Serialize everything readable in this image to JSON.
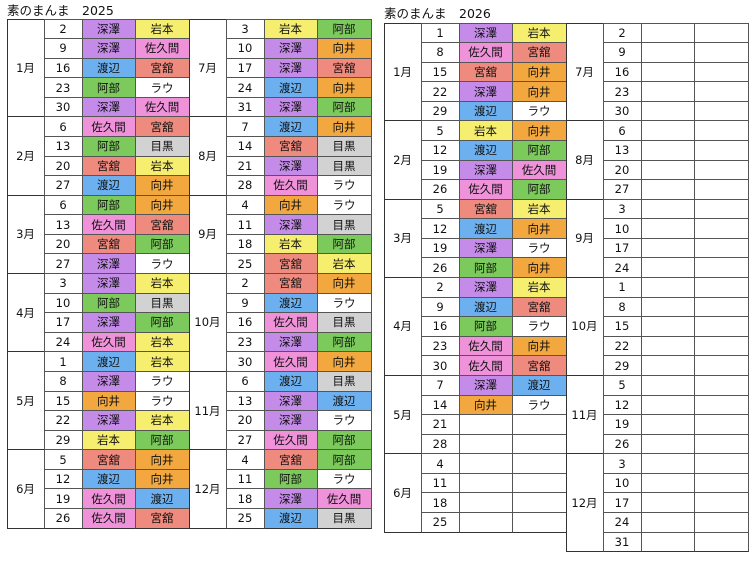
{
  "member_colors": {
    "深澤": "#c48be8",
    "岩本": "#f6ee6e",
    "佐久間": "#ef92d9",
    "渡辺": "#6cb0ef",
    "宮舘": "#ee8a7e",
    "阿部": "#7cc95c",
    "ラウ": "#ffffff",
    "向井": "#f2a83f",
    "目黒": "#d2d2d2"
  },
  "tables": [
    {
      "title": "素のまんま　2025",
      "columns": [
        {
          "months": [
            {
              "month": "1月",
              "rows": [
                [
                  2,
                  "深澤",
                  "岩本"
                ],
                [
                  9,
                  "深澤",
                  "佐久間"
                ],
                [
                  16,
                  "渡辺",
                  "宮舘"
                ],
                [
                  23,
                  "阿部",
                  "ラウ"
                ],
                [
                  30,
                  "深澤",
                  "佐久間"
                ]
              ]
            },
            {
              "month": "2月",
              "rows": [
                [
                  6,
                  "佐久間",
                  "宮舘"
                ],
                [
                  13,
                  "阿部",
                  "目黒"
                ],
                [
                  20,
                  "宮舘",
                  "岩本"
                ],
                [
                  27,
                  "渡辺",
                  "向井"
                ]
              ]
            },
            {
              "month": "3月",
              "rows": [
                [
                  6,
                  "阿部",
                  "向井"
                ],
                [
                  13,
                  "佐久間",
                  "宮舘"
                ],
                [
                  20,
                  "宮舘",
                  "阿部"
                ],
                [
                  27,
                  "深澤",
                  "ラウ"
                ]
              ]
            },
            {
              "month": "4月",
              "rows": [
                [
                  3,
                  "深澤",
                  "岩本"
                ],
                [
                  10,
                  "阿部",
                  "目黒"
                ],
                [
                  17,
                  "深澤",
                  "阿部"
                ],
                [
                  24,
                  "佐久間",
                  "岩本"
                ]
              ]
            },
            {
              "month": "5月",
              "rows": [
                [
                  1,
                  "渡辺",
                  "岩本"
                ],
                [
                  8,
                  "深澤",
                  "ラウ"
                ],
                [
                  15,
                  "向井",
                  "ラウ"
                ],
                [
                  22,
                  "深澤",
                  "岩本"
                ],
                [
                  29,
                  "岩本",
                  "阿部"
                ]
              ]
            },
            {
              "month": "6月",
              "rows": [
                [
                  5,
                  "宮舘",
                  "向井"
                ],
                [
                  12,
                  "渡辺",
                  "向井"
                ],
                [
                  19,
                  "佐久間",
                  "渡辺"
                ],
                [
                  26,
                  "佐久間",
                  "宮舘"
                ]
              ]
            }
          ]
        },
        {
          "months": [
            {
              "month": "7月",
              "rows": [
                [
                  3,
                  "岩本",
                  "阿部"
                ],
                [
                  10,
                  "深澤",
                  "向井"
                ],
                [
                  17,
                  "深澤",
                  "宮舘"
                ],
                [
                  24,
                  "渡辺",
                  "向井"
                ],
                [
                  31,
                  "深澤",
                  "阿部"
                ]
              ]
            },
            {
              "month": "8月",
              "rows": [
                [
                  7,
                  "渡辺",
                  "向井"
                ],
                [
                  14,
                  "宮舘",
                  "目黒"
                ],
                [
                  21,
                  "深澤",
                  "目黒"
                ],
                [
                  28,
                  "佐久間",
                  "ラウ"
                ]
              ]
            },
            {
              "month": "9月",
              "rows": [
                [
                  4,
                  "向井",
                  "ラウ"
                ],
                [
                  11,
                  "深澤",
                  "目黒"
                ],
                [
                  18,
                  "岩本",
                  "阿部"
                ],
                [
                  25,
                  "宮舘",
                  "岩本"
                ]
              ]
            },
            {
              "month": "10月",
              "rows": [
                [
                  2,
                  "宮舘",
                  "向井"
                ],
                [
                  9,
                  "渡辺",
                  "ラウ"
                ],
                [
                  16,
                  "佐久間",
                  "目黒"
                ],
                [
                  23,
                  "深澤",
                  "阿部"
                ],
                [
                  30,
                  "佐久間",
                  "向井"
                ]
              ]
            },
            {
              "month": "11月",
              "rows": [
                [
                  6,
                  "渡辺",
                  "目黒"
                ],
                [
                  13,
                  "深澤",
                  "渡辺"
                ],
                [
                  20,
                  "深澤",
                  "ラウ"
                ],
                [
                  27,
                  "佐久間",
                  "阿部"
                ]
              ]
            },
            {
              "month": "12月",
              "rows": [
                [
                  4,
                  "宮舘",
                  "阿部"
                ],
                [
                  11,
                  "阿部",
                  "ラウ"
                ],
                [
                  18,
                  "深澤",
                  "佐久間"
                ],
                [
                  25,
                  "渡辺",
                  "目黒"
                ]
              ]
            }
          ]
        }
      ]
    },
    {
      "title": "素のまんま　2026",
      "columns": [
        {
          "months": [
            {
              "month": "1月",
              "rows": [
                [
                  1,
                  "深澤",
                  "岩本"
                ],
                [
                  8,
                  "佐久間",
                  "宮舘"
                ],
                [
                  15,
                  "宮舘",
                  "向井"
                ],
                [
                  22,
                  "深澤",
                  "向井"
                ],
                [
                  29,
                  "渡辺",
                  "ラウ"
                ]
              ]
            },
            {
              "month": "2月",
              "rows": [
                [
                  5,
                  "岩本",
                  "向井"
                ],
                [
                  12,
                  "渡辺",
                  "阿部"
                ],
                [
                  19,
                  "深澤",
                  "佐久間"
                ],
                [
                  26,
                  "佐久間",
                  "阿部"
                ]
              ]
            },
            {
              "month": "3月",
              "rows": [
                [
                  5,
                  "宮舘",
                  "岩本"
                ],
                [
                  12,
                  "渡辺",
                  "向井"
                ],
                [
                  19,
                  "深澤",
                  "ラウ"
                ],
                [
                  26,
                  "阿部",
                  "向井"
                ]
              ]
            },
            {
              "month": "4月",
              "rows": [
                [
                  2,
                  "深澤",
                  "岩本"
                ],
                [
                  9,
                  "渡辺",
                  "宮舘"
                ],
                [
                  16,
                  "阿部",
                  "ラウ"
                ],
                [
                  23,
                  "佐久間",
                  "向井"
                ],
                [
                  30,
                  "佐久間",
                  "宮舘"
                ]
              ]
            },
            {
              "month": "5月",
              "rows": [
                [
                  7,
                  "深澤",
                  "渡辺"
                ],
                [
                  14,
                  "向井",
                  "ラウ"
                ],
                [
                  21
                ],
                [
                  28
                ]
              ]
            },
            {
              "month": "6月",
              "rows": [
                [
                  4
                ],
                [
                  11
                ],
                [
                  18
                ],
                [
                  25
                ]
              ]
            }
          ]
        },
        {
          "months": [
            {
              "month": "7月",
              "rows": [
                [
                  2
                ],
                [
                  9
                ],
                [
                  16
                ],
                [
                  23
                ],
                [
                  30
                ]
              ]
            },
            {
              "month": "8月",
              "rows": [
                [
                  6
                ],
                [
                  13
                ],
                [
                  20
                ],
                [
                  27
                ]
              ]
            },
            {
              "month": "9月",
              "rows": [
                [
                  3
                ],
                [
                  10
                ],
                [
                  17
                ],
                [
                  24
                ]
              ]
            },
            {
              "month": "10月",
              "rows": [
                [
                  1
                ],
                [
                  8
                ],
                [
                  15
                ],
                [
                  22
                ],
                [
                  29
                ]
              ]
            },
            {
              "month": "11月",
              "rows": [
                [
                  5
                ],
                [
                  12
                ],
                [
                  19
                ],
                [
                  26
                ]
              ]
            },
            {
              "month": "12月",
              "rows": [
                [
                  3
                ],
                [
                  10
                ],
                [
                  17
                ],
                [
                  24
                ],
                [
                  31
                ]
              ]
            }
          ]
        }
      ]
    }
  ]
}
